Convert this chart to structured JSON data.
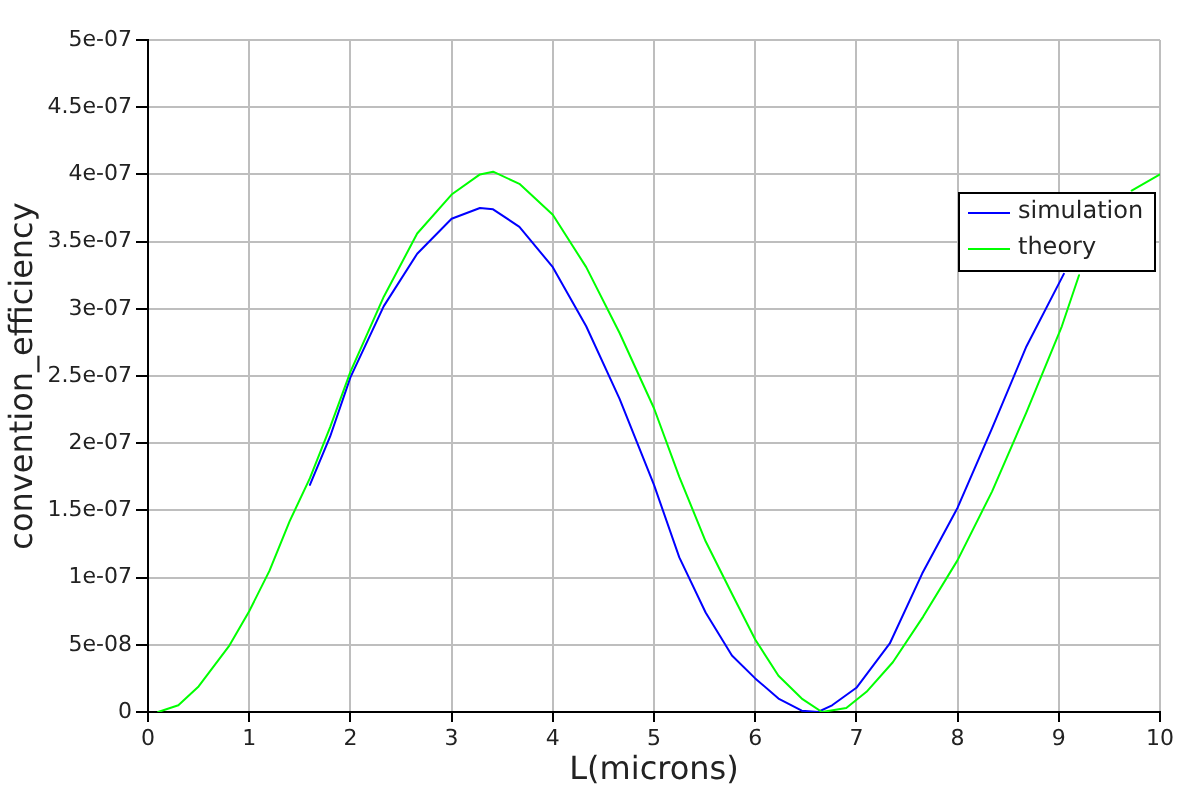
{
  "chart_data": {
    "type": "line",
    "xlabel": "L(microns)",
    "ylabel": "convention_efficiency",
    "xlim": [
      0,
      10
    ],
    "xticks": [
      0,
      1,
      2,
      3,
      4,
      5,
      6,
      7,
      8,
      9,
      10
    ],
    "ylim": [
      0,
      5e-07
    ],
    "yticks": [
      0,
      {
        "value": 5e-08,
        "label": "5e-08"
      },
      {
        "value": 1e-07,
        "label": "1e-07"
      },
      {
        "value": 1.5e-07,
        "label": "1.5e-07"
      },
      {
        "value": 2e-07,
        "label": "2e-07"
      },
      {
        "value": 2.5e-07,
        "label": "2.5e-07"
      },
      {
        "value": 3e-07,
        "label": "3e-07"
      },
      {
        "value": 3.5e-07,
        "label": "3.5e-07"
      },
      {
        "value": 4e-07,
        "label": "4e-07"
      },
      {
        "value": 4.5e-07,
        "label": "4.5e-07"
      },
      {
        "value": 5e-07,
        "label": "5e-07"
      }
    ],
    "grid": true,
    "legend": "top right",
    "series": [
      {
        "name": "simulation",
        "color": "#0000ff",
        "x": [
          1.6,
          1.8,
          2,
          2.33,
          2.66,
          3,
          3.28,
          3.41,
          3.67,
          4,
          4.33,
          4.66,
          5,
          5.25,
          5.51,
          5.77,
          6,
          6.23,
          6.46,
          6.62,
          6.76,
          7,
          7.33,
          7.65,
          8,
          8.34,
          8.68,
          9.05
        ],
        "values": [
          1.69e-07,
          2.05e-07,
          2.49e-07,
          3.02e-07,
          3.41e-07,
          3.67e-07,
          3.75e-07,
          3.74e-07,
          3.61e-07,
          3.31e-07,
          2.87e-07,
          2.33e-07,
          1.69e-07,
          1.15e-07,
          7.4e-08,
          4.2e-08,
          2.5e-08,
          1e-08,
          1e-09,
          0,
          5e-09,
          1.8e-08,
          5.1e-08,
          1.03e-07,
          1.52e-07,
          2.11e-07,
          2.72e-07,
          3.26e-07
        ]
      },
      {
        "name": "theory",
        "color": "#00ff00",
        "x": [
          0.1,
          0.3,
          0.5,
          0.8,
          1,
          1.2,
          1.4,
          1.6,
          1.8,
          2,
          2.33,
          2.66,
          3,
          3.28,
          3.41,
          3.67,
          4,
          4.33,
          4.66,
          5,
          5.25,
          5.51,
          5.77,
          6,
          6.23,
          6.46,
          6.66,
          6.9,
          7.1,
          7.36,
          7.66,
          8,
          8.34,
          8.68,
          9.03,
          9.2,
          9.45,
          9.72,
          10
        ],
        "values": [
          0,
          5e-09,
          1.9e-08,
          4.9e-08,
          7.5e-08,
          1.05e-07,
          1.42e-07,
          1.74e-07,
          2.12e-07,
          2.53e-07,
          3.09e-07,
          3.56e-07,
          3.85e-07,
          4e-07,
          4.02e-07,
          3.93e-07,
          3.7e-07,
          3.31e-07,
          2.82e-07,
          2.26e-07,
          1.75e-07,
          1.27e-07,
          8.8e-08,
          5.4e-08,
          2.7e-08,
          1e-08,
          0,
          3e-09,
          1.5e-08,
          3.7e-08,
          7.1e-08,
          1.13e-07,
          1.64e-07,
          2.23e-07,
          2.87e-07,
          3.25e-07,
          null,
          3.88e-07,
          4e-07
        ]
      }
    ]
  }
}
